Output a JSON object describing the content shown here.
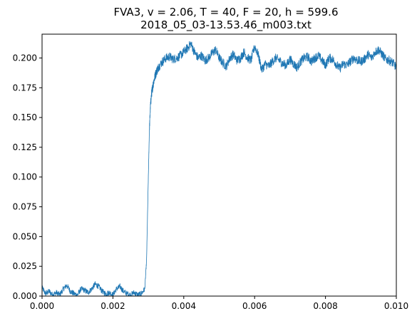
{
  "chart_data": {
    "type": "line",
    "title": "FVA3, v = 2.06, T = 40, F = 20, h = 599.6",
    "subtitle": "2018_05_03-13.53.46_m003.txt",
    "xlabel": "",
    "ylabel": "",
    "xlim": [
      0,
      0.01
    ],
    "ylim": [
      0,
      0.22
    ],
    "grid": false,
    "x_ticks": [
      "0.000",
      "0.002",
      "0.004",
      "0.006",
      "0.008",
      "0.010"
    ],
    "y_ticks": [
      "0.000",
      "0.025",
      "0.050",
      "0.075",
      "0.100",
      "0.125",
      "0.150",
      "0.175",
      "0.200"
    ],
    "series": [
      {
        "color": "#1f77b4",
        "x": [
          0,
          0.0001,
          0.0002,
          0.0003,
          0.0004,
          0.0005,
          0.0006,
          0.0007,
          0.0008,
          0.0009,
          0.001,
          0.0011,
          0.0012,
          0.0013,
          0.0014,
          0.0015,
          0.0016,
          0.0017,
          0.0018,
          0.0019,
          0.002,
          0.0021,
          0.0022,
          0.0023,
          0.0024,
          0.0025,
          0.0026,
          0.0027,
          0.0028,
          0.0029,
          0.00295,
          0.003,
          0.00303,
          0.00306,
          0.00309,
          0.00312,
          0.00315,
          0.0032,
          0.00325,
          0.0033,
          0.0034,
          0.0035,
          0.0036,
          0.0037,
          0.0038,
          0.0039,
          0.004,
          0.0041,
          0.0042,
          0.0043,
          0.0044,
          0.0045,
          0.0046,
          0.0047,
          0.0048,
          0.0049,
          0.005,
          0.0051,
          0.0052,
          0.0053,
          0.0054,
          0.0055,
          0.0056,
          0.0057,
          0.0058,
          0.0059,
          0.006,
          0.0061,
          0.0062,
          0.0063,
          0.0064,
          0.0065,
          0.0066,
          0.0067,
          0.0068,
          0.0069,
          0.007,
          0.0071,
          0.0072,
          0.0073,
          0.0074,
          0.0075,
          0.0076,
          0.0077,
          0.0078,
          0.0079,
          0.008,
          0.0081,
          0.0082,
          0.0083,
          0.0084,
          0.0085,
          0.0086,
          0.0087,
          0.0088,
          0.0089,
          0.009,
          0.0091,
          0.0092,
          0.0093,
          0.0094,
          0.0095,
          0.0096,
          0.0097,
          0.0098,
          0.0099,
          0.01
        ],
        "y": [
          0.007,
          0.002,
          0.004,
          0.001,
          0.003,
          0.001,
          0.006,
          0.009,
          0.004,
          0.002,
          0.001,
          0.006,
          0.005,
          0.003,
          0.006,
          0.01,
          0.008,
          0.004,
          0.002,
          0.003,
          0.001,
          0.006,
          0.008,
          0.004,
          0.002,
          0.001,
          0.003,
          0.001,
          0.002,
          0.006,
          0.03,
          0.1,
          0.14,
          0.16,
          0.17,
          0.175,
          0.18,
          0.186,
          0.19,
          0.193,
          0.197,
          0.2,
          0.201,
          0.199,
          0.2,
          0.202,
          0.205,
          0.208,
          0.212,
          0.205,
          0.2,
          0.202,
          0.198,
          0.2,
          0.204,
          0.207,
          0.2,
          0.196,
          0.193,
          0.2,
          0.203,
          0.198,
          0.2,
          0.205,
          0.2,
          0.198,
          0.21,
          0.203,
          0.19,
          0.195,
          0.193,
          0.197,
          0.2,
          0.198,
          0.195,
          0.194,
          0.199,
          0.195,
          0.192,
          0.197,
          0.2,
          0.201,
          0.197,
          0.2,
          0.202,
          0.198,
          0.194,
          0.2,
          0.199,
          0.195,
          0.191,
          0.195,
          0.194,
          0.197,
          0.2,
          0.198,
          0.197,
          0.199,
          0.203,
          0.2,
          0.205,
          0.207,
          0.203,
          0.199,
          0.198,
          0.196,
          0.192
        ]
      }
    ]
  }
}
